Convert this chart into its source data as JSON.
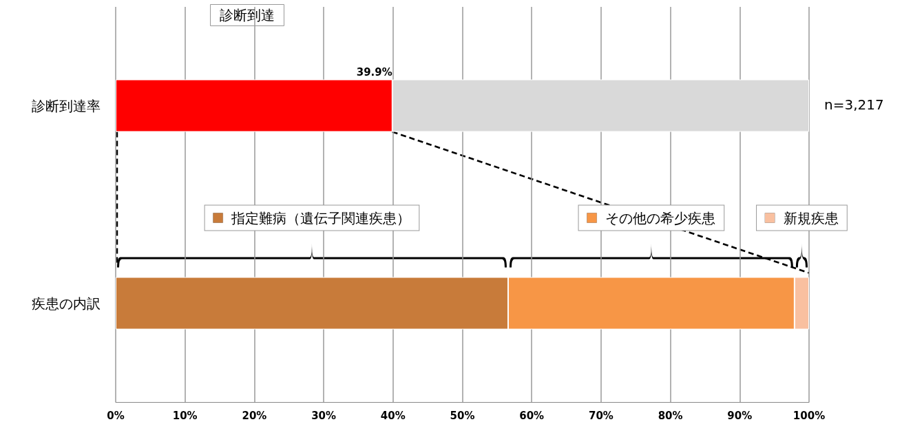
{
  "chart_data": {
    "type": "bar",
    "orientation": "horizontal",
    "stacked": true,
    "title": "診断到達",
    "categories": [
      "診断到達率",
      "疾患の内訳"
    ],
    "series": [
      {
        "color": "#ff0000",
        "values": [
          39.9,
          null
        ],
        "value_labels": [
          "39.9%",
          null
        ]
      },
      {
        "color": "#d9d9d9",
        "values": [
          60.1,
          null
        ]
      },
      {
        "name": "指定難病（遺伝子関連疾患）",
        "color": "#c87b3a",
        "values": [
          null,
          56.6
        ]
      },
      {
        "name": "その他の希少疾患",
        "color": "#f79646",
        "values": [
          null,
          41.3
        ]
      },
      {
        "name": "新規疾患",
        "color": "#f9c0a0",
        "values": [
          null,
          2.1
        ]
      }
    ],
    "xlim": [
      0,
      100
    ],
    "xticks": [
      {
        "value": 0,
        "label": "0%"
      },
      {
        "value": 10,
        "label": "10%"
      },
      {
        "value": 20,
        "label": "20%"
      },
      {
        "value": 30,
        "label": "30%"
      },
      {
        "value": 40,
        "label": "40%"
      },
      {
        "value": 50,
        "label": "50%"
      },
      {
        "value": 60,
        "label": "60%"
      },
      {
        "value": 70,
        "label": "70%"
      },
      {
        "value": 80,
        "label": "80%"
      },
      {
        "value": 90,
        "label": "90%"
      },
      {
        "value": 100,
        "label": "100%"
      }
    ],
    "annotations": [
      "n=3,217"
    ],
    "grid": "x",
    "legend": "bottom right"
  }
}
